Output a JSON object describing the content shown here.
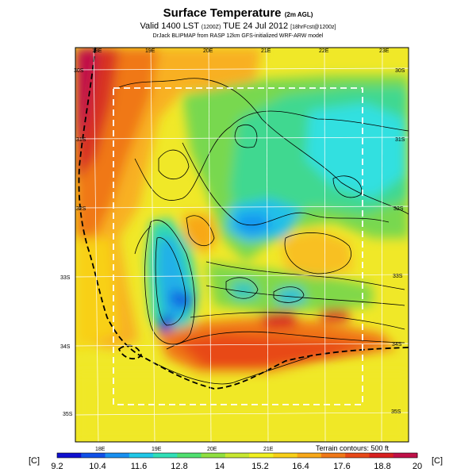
{
  "header": {
    "title": "Surface Temperature",
    "title_qualifier": "(2m AGL)",
    "valid_main": "Valid 1400 LST",
    "valid_code": "(1200Z)",
    "valid_date": "TUE 24 Jul 2012",
    "forecast_info": "[18hrFcst@1200z]",
    "credit": "DrJack BLIPMAP from RASP 12km GFS-initialized WRF-ARW model"
  },
  "map": {
    "lon_labels_top": [
      "18E",
      "19E",
      "20E",
      "21E",
      "22E",
      "23E"
    ],
    "lon_labels_bottom": [
      "18E",
      "19E",
      "20E",
      "21E"
    ],
    "lat_labels_left": [
      "30S",
      "31S",
      "32S",
      "33S",
      "34S",
      "35S"
    ],
    "lat_labels_right": [
      "30S",
      "31S",
      "32S",
      "33S",
      "34S",
      "35S"
    ],
    "terrain_note": "Terrain contours: 500 ft"
  },
  "colorbar": {
    "unit_left": "[C]",
    "unit_right": "[C]",
    "ticks": [
      "9.2",
      "10.4",
      "11.6",
      "12.8",
      "14",
      "15.2",
      "16.4",
      "17.6",
      "18.8",
      "20"
    ],
    "colors": [
      "#1010d0",
      "#1050e8",
      "#1890f0",
      "#20c8e8",
      "#30e0b8",
      "#50e070",
      "#90e040",
      "#c8e830",
      "#f0f020",
      "#f8d018",
      "#f8a818",
      "#f07818",
      "#e84818",
      "#d82020",
      "#c01048"
    ]
  }
}
